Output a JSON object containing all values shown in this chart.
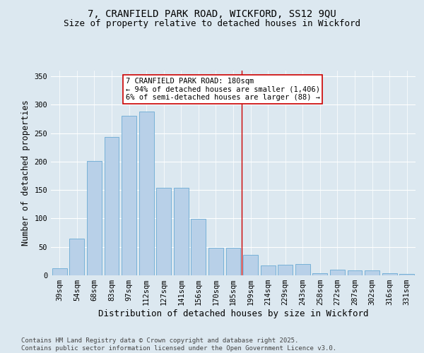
{
  "title": "7, CRANFIELD PARK ROAD, WICKFORD, SS12 9QU",
  "subtitle": "Size of property relative to detached houses in Wickford",
  "xlabel": "Distribution of detached houses by size in Wickford",
  "ylabel": "Number of detached properties",
  "footer": "Contains HM Land Registry data © Crown copyright and database right 2025.\nContains public sector information licensed under the Open Government Licence v3.0.",
  "categories": [
    "39sqm",
    "54sqm",
    "68sqm",
    "83sqm",
    "97sqm",
    "112sqm",
    "127sqm",
    "141sqm",
    "156sqm",
    "170sqm",
    "185sqm",
    "199sqm",
    "214sqm",
    "229sqm",
    "243sqm",
    "258sqm",
    "272sqm",
    "287sqm",
    "302sqm",
    "316sqm",
    "331sqm"
  ],
  "values": [
    13,
    65,
    201,
    243,
    281,
    288,
    154,
    154,
    99,
    48,
    48,
    36,
    18,
    19,
    20,
    4,
    10,
    9,
    9,
    4,
    2
  ],
  "bar_color": "#b8d0e8",
  "bar_edge_color": "#6aaad4",
  "background_color": "#dce8f0",
  "grid_color": "#ffffff",
  "annotation_box_text": "7 CRANFIELD PARK ROAD: 180sqm\n← 94% of detached houses are smaller (1,406)\n6% of semi-detached houses are larger (88) →",
  "annotation_box_color": "#ffffff",
  "annotation_box_edge_color": "#cc0000",
  "vline_index": 10.5,
  "vline_color": "#cc0000",
  "ylim": [
    0,
    360
  ],
  "yticks": [
    0,
    50,
    100,
    150,
    200,
    250,
    300,
    350
  ],
  "title_fontsize": 10,
  "subtitle_fontsize": 9,
  "axis_label_fontsize": 8.5,
  "tick_fontsize": 7.5,
  "annotation_fontsize": 7.5,
  "footer_fontsize": 6.5
}
